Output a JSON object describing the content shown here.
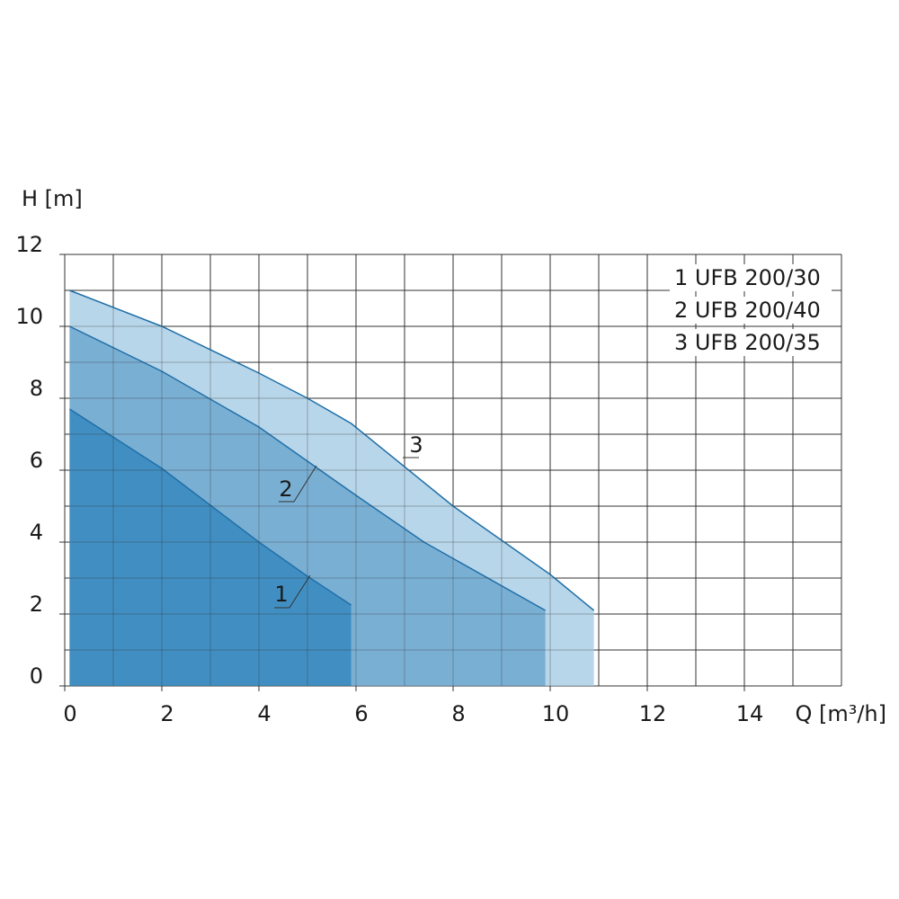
{
  "chart_data": {
    "type": "area",
    "y_label": "H [m]",
    "x_label": "Q [m³/h]",
    "xlim": [
      0,
      16
    ],
    "ylim": [
      0,
      12
    ],
    "xticks": [
      0,
      2,
      4,
      6,
      8,
      10,
      12,
      14
    ],
    "yticks": [
      0,
      2,
      4,
      6,
      8,
      10,
      12
    ],
    "xgrid_lines": [
      0,
      1,
      2,
      3,
      4,
      5,
      6,
      7,
      8,
      9,
      10,
      11,
      12,
      13,
      14,
      15,
      16
    ],
    "ygrid_lines": [
      0,
      1,
      2,
      3,
      4,
      5,
      6,
      7,
      8,
      9,
      10,
      11,
      12
    ],
    "line_color": "#1f6fa8",
    "series": [
      {
        "name": "1 UFB 200/30",
        "label": "1",
        "color": "#418fc2",
        "x": [
          0.1,
          2,
          4,
          5,
          5.9
        ],
        "values": [
          7.7,
          6.05,
          4.0,
          3.05,
          2.25
        ]
      },
      {
        "name": "2 UFB 200/40",
        "label": "2",
        "color": "#7aafd4",
        "x": [
          0.1,
          2,
          4,
          6,
          7.4,
          9.9
        ],
        "values": [
          10.0,
          8.75,
          7.2,
          5.3,
          4.0,
          2.1
        ]
      },
      {
        "name": "3 UFB 200/35",
        "label": "3",
        "color": "#b8d6ea",
        "x": [
          0.1,
          2,
          4,
          5,
          5.9,
          8,
          10,
          10.9
        ],
        "values": [
          11.0,
          10.0,
          8.7,
          8.0,
          7.3,
          5.0,
          3.1,
          2.1
        ]
      }
    ]
  }
}
